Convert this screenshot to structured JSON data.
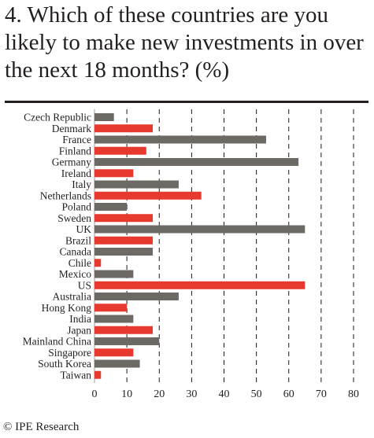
{
  "title": "4. Which of these countries are you likely to make new investments in over the next 18 months? (%)",
  "source": "© IPE Research",
  "colors": {
    "grey": "#6d6a66",
    "red": "#e8392e",
    "text": "#231f20",
    "axis": "#9a9a9a"
  },
  "chart_data": {
    "type": "bar",
    "orientation": "horizontal",
    "categories": [
      "Czech Republic",
      "Denmark",
      "France",
      "Finland",
      "Germany",
      "Ireland",
      "Italy",
      "Netherlands",
      "Poland",
      "Sweden",
      "UK",
      "Brazil",
      "Canada",
      "Chile",
      "Mexico",
      "US",
      "Australia",
      "Hong Kong",
      "India",
      "Japan",
      "Mainland China",
      "Singapore",
      "South Korea",
      "Taiwan"
    ],
    "values": [
      6,
      18,
      53,
      16,
      63,
      12,
      26,
      33,
      10,
      18,
      65,
      18,
      18,
      2,
      12,
      65,
      26,
      10,
      12,
      18,
      20,
      12,
      14,
      2
    ],
    "bar_colors": [
      "grey",
      "red",
      "grey",
      "red",
      "grey",
      "red",
      "grey",
      "red",
      "grey",
      "red",
      "grey",
      "red",
      "grey",
      "red",
      "grey",
      "red",
      "grey",
      "red",
      "grey",
      "red",
      "grey",
      "red",
      "grey",
      "red"
    ],
    "xlim": [
      0,
      80
    ],
    "xticks": [
      0,
      10,
      20,
      30,
      40,
      50,
      60,
      70,
      80
    ],
    "grid": "vertical dashed",
    "legend": "none"
  }
}
